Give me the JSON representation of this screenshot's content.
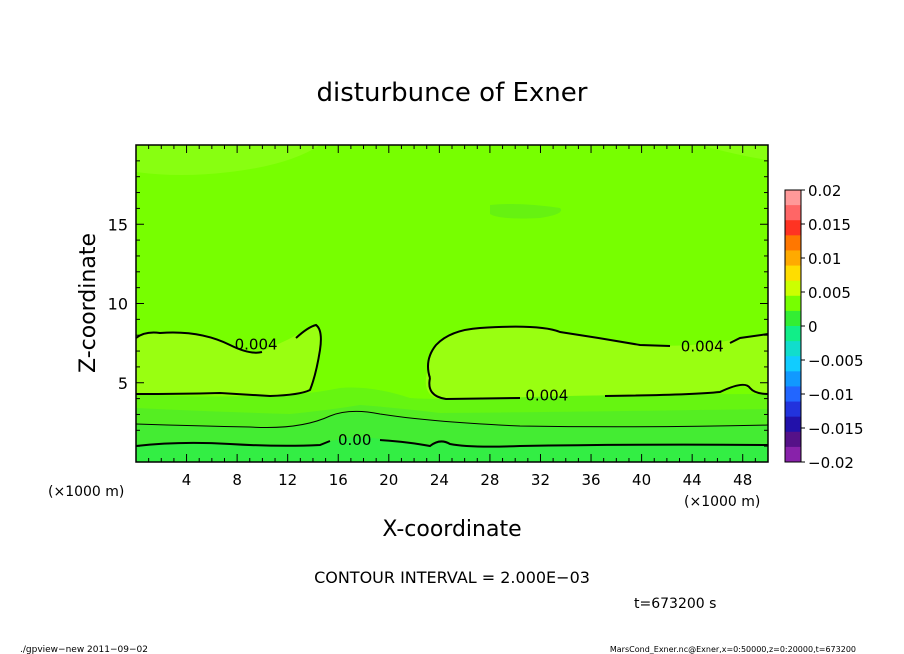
{
  "chart_data": {
    "type": "heatmap",
    "title": "disturbunce of Exner",
    "xlabel": "X-coordinate",
    "ylabel": "Z-coordinate",
    "x_unit": "(×1000 m)",
    "x_unit_right": "(×1000 m)",
    "xlim": [
      0,
      50
    ],
    "ylim": [
      0,
      20
    ],
    "x_ticks": [
      "4",
      "8",
      "12",
      "16",
      "20",
      "24",
      "28",
      "32",
      "36",
      "40",
      "44",
      "48"
    ],
    "y_ticks": [
      "5",
      "10",
      "15"
    ],
    "colorbar": {
      "ticks": [
        "0.02",
        "0.015",
        "0.01",
        "0.005",
        "0",
        "−0.005",
        "−0.01",
        "−0.015",
        "−0.02"
      ],
      "range": [
        -0.02,
        0.02
      ]
    },
    "contour_labels": [
      {
        "text": "0.004",
        "x": 9.5,
        "y": 7.4
      },
      {
        "text": "0.004",
        "x": 44.8,
        "y": 7.3
      },
      {
        "text": "0.004",
        "x": 32.5,
        "y": 4.2
      },
      {
        "text": "0.00",
        "x": 17.3,
        "y": 1.4
      }
    ],
    "contour_interval": "CONTOUR INTERVAL = 2.000E−03",
    "time": "t=673200 s"
  },
  "footer": {
    "left": "./gpview−new  2011−09−02",
    "right": "MarsCond_Exner.nc@Exner,x=0:50000,z=0:20000,t=673200"
  },
  "colors": {
    "bg_green": "#77ff00",
    "light_green": "#99ff11",
    "mid_green": "#55ee22",
    "deep_green": "#33ee44"
  }
}
